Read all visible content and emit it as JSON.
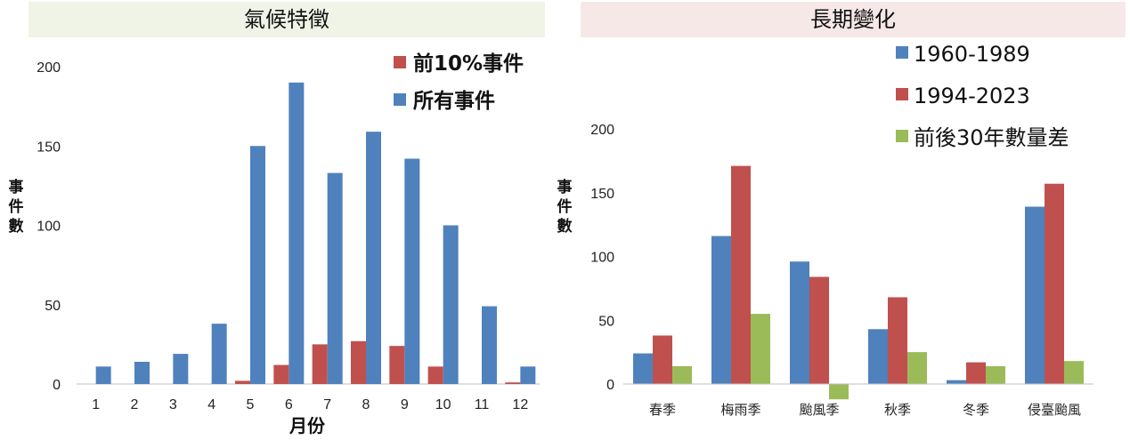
{
  "chart_data": [
    {
      "type": "bar",
      "title": "氣候特徵",
      "xlabel": "月份",
      "ylabel": "事件數",
      "ylim": [
        0,
        200
      ],
      "yticks": [
        0,
        50,
        100,
        150,
        200
      ],
      "categories": [
        "1",
        "2",
        "3",
        "4",
        "5",
        "6",
        "7",
        "8",
        "9",
        "10",
        "11",
        "12"
      ],
      "series": [
        {
          "name": "前10%事件",
          "color": "#c0504d",
          "values": [
            0,
            0,
            0,
            0,
            2,
            12,
            25,
            27,
            24,
            11,
            0,
            1
          ]
        },
        {
          "name": "所有事件",
          "color": "#4f81bd",
          "values": [
            11,
            14,
            19,
            38,
            150,
            190,
            133,
            159,
            142,
            100,
            49,
            11
          ]
        }
      ],
      "legend": "top-right"
    },
    {
      "type": "bar",
      "title": "長期變化",
      "xlabel": "",
      "ylabel": "事件數",
      "ylim": [
        -10,
        200
      ],
      "yticks": [
        0,
        50,
        100,
        150,
        200
      ],
      "categories": [
        "春季",
        "梅雨季",
        "颱風季",
        "秋季",
        "冬季",
        "侵臺颱風"
      ],
      "series": [
        {
          "name": "1960-1989",
          "color": "#4f81bd",
          "values": [
            24,
            116,
            96,
            43,
            3,
            139
          ]
        },
        {
          "name": "1994-2023",
          "color": "#c0504d",
          "values": [
            38,
            171,
            84,
            68,
            17,
            157
          ]
        },
        {
          "name": "前後30年數量差",
          "color": "#9bbb59",
          "values": [
            14,
            55,
            -12,
            25,
            14,
            18
          ]
        }
      ],
      "legend": "top-right"
    }
  ]
}
